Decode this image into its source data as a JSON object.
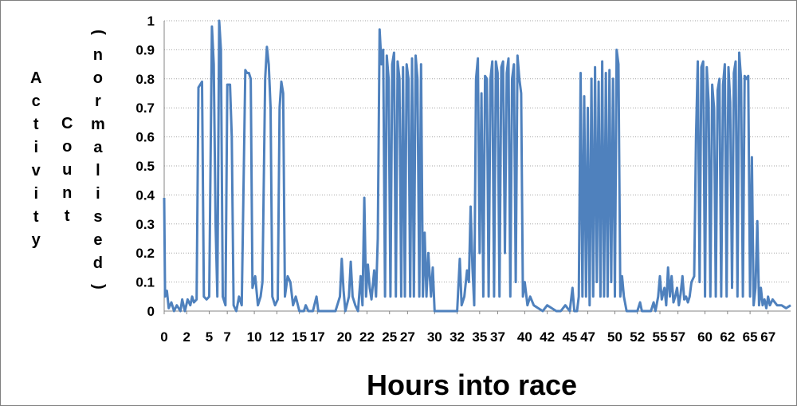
{
  "chart_data": {
    "type": "line",
    "title": "",
    "xlabel": "Hours into race",
    "ylabel_parts": [
      "Activity",
      "Count",
      "(normalised)"
    ],
    "ylim": [
      0,
      1
    ],
    "yticks": [
      "0",
      "0.1",
      "0.2",
      "0.3",
      "0.4",
      "0.5",
      "0.6",
      "0.7",
      "0.8",
      "0.9",
      "1"
    ],
    "xlim": [
      0,
      69.5
    ],
    "xticks": [
      0,
      2.5,
      5,
      7,
      10,
      12.5,
      15,
      17,
      20,
      22.5,
      25,
      27,
      30,
      32.5,
      35,
      37,
      40,
      42.5,
      45,
      47,
      50,
      52.5,
      55,
      57,
      60,
      62.5,
      65,
      67
    ],
    "xtick_labels": [
      "0",
      "2",
      "5",
      "7",
      "10",
      "12",
      "15",
      "17",
      "20",
      "22",
      "25",
      "27",
      "30",
      "32",
      "35",
      "37",
      "40",
      "42",
      "45",
      "47",
      "50",
      "52",
      "55",
      "57",
      "60",
      "62",
      "65",
      "67"
    ],
    "grid": "horizontal",
    "legend": "none",
    "series_color": "#4f81bd",
    "series": [
      {
        "values": [
          [
            0.0,
            0.39
          ],
          [
            0.1,
            0.05
          ],
          [
            0.3,
            0.07
          ],
          [
            0.5,
            0.01
          ],
          [
            0.8,
            0.03
          ],
          [
            1.1,
            0.0
          ],
          [
            1.4,
            0.02
          ],
          [
            1.8,
            0.0
          ],
          [
            2.0,
            0.04
          ],
          [
            2.3,
            0.0
          ],
          [
            2.6,
            0.04
          ],
          [
            2.9,
            0.02
          ],
          [
            3.1,
            0.05
          ],
          [
            3.3,
            0.03
          ],
          [
            3.6,
            0.04
          ],
          [
            3.8,
            0.77
          ],
          [
            4.0,
            0.78
          ],
          [
            4.2,
            0.79
          ],
          [
            4.4,
            0.05
          ],
          [
            4.7,
            0.04
          ],
          [
            5.0,
            0.05
          ],
          [
            5.3,
            0.98
          ],
          [
            5.5,
            0.85
          ],
          [
            5.7,
            0.3
          ],
          [
            5.9,
            0.05
          ],
          [
            6.1,
            1.0
          ],
          [
            6.3,
            0.9
          ],
          [
            6.5,
            0.05
          ],
          [
            6.8,
            0.02
          ],
          [
            7.0,
            0.78
          ],
          [
            7.3,
            0.78
          ],
          [
            7.5,
            0.6
          ],
          [
            7.7,
            0.02
          ],
          [
            8.0,
            0.0
          ],
          [
            8.3,
            0.05
          ],
          [
            8.6,
            0.02
          ],
          [
            9.0,
            0.83
          ],
          [
            9.2,
            0.82
          ],
          [
            9.4,
            0.82
          ],
          [
            9.6,
            0.8
          ],
          [
            9.8,
            0.08
          ],
          [
            10.1,
            0.12
          ],
          [
            10.4,
            0.02
          ],
          [
            10.7,
            0.05
          ],
          [
            10.9,
            0.1
          ],
          [
            11.2,
            0.8
          ],
          [
            11.4,
            0.91
          ],
          [
            11.6,
            0.85
          ],
          [
            11.8,
            0.7
          ],
          [
            12.0,
            0.05
          ],
          [
            12.3,
            0.02
          ],
          [
            12.6,
            0.04
          ],
          [
            12.8,
            0.7
          ],
          [
            13.0,
            0.79
          ],
          [
            13.2,
            0.75
          ],
          [
            13.4,
            0.05
          ],
          [
            13.7,
            0.12
          ],
          [
            14.0,
            0.1
          ],
          [
            14.3,
            0.02
          ],
          [
            14.6,
            0.05
          ],
          [
            15.0,
            0.0
          ],
          [
            15.5,
            0.0
          ],
          [
            15.7,
            0.02
          ],
          [
            16.0,
            0.0
          ],
          [
            16.5,
            0.0
          ],
          [
            16.9,
            0.05
          ],
          [
            17.1,
            0.0
          ],
          [
            18.0,
            0.0
          ],
          [
            19.0,
            0.0
          ],
          [
            19.5,
            0.05
          ],
          [
            19.7,
            0.18
          ],
          [
            19.9,
            0.07
          ],
          [
            20.1,
            0.0
          ],
          [
            20.5,
            0.05
          ],
          [
            20.7,
            0.17
          ],
          [
            20.9,
            0.05
          ],
          [
            21.2,
            0.02
          ],
          [
            21.5,
            0.0
          ],
          [
            21.8,
            0.12
          ],
          [
            22.0,
            0.02
          ],
          [
            22.2,
            0.39
          ],
          [
            22.4,
            0.05
          ],
          [
            22.6,
            0.16
          ],
          [
            22.8,
            0.08
          ],
          [
            23.0,
            0.04
          ],
          [
            23.3,
            0.14
          ],
          [
            23.5,
            0.05
          ],
          [
            23.7,
            0.25
          ],
          [
            23.9,
            0.97
          ],
          [
            24.1,
            0.85
          ],
          [
            24.3,
            0.9
          ],
          [
            24.5,
            0.05
          ],
          [
            24.7,
            0.88
          ],
          [
            24.9,
            0.8
          ],
          [
            25.1,
            0.05
          ],
          [
            25.3,
            0.85
          ],
          [
            25.5,
            0.89
          ],
          [
            25.7,
            0.05
          ],
          [
            25.9,
            0.86
          ],
          [
            26.1,
            0.8
          ],
          [
            26.3,
            0.05
          ],
          [
            26.5,
            0.84
          ],
          [
            26.7,
            0.05
          ],
          [
            26.9,
            0.85
          ],
          [
            27.1,
            0.8
          ],
          [
            27.3,
            0.05
          ],
          [
            27.5,
            0.87
          ],
          [
            27.7,
            0.05
          ],
          [
            27.9,
            0.88
          ],
          [
            28.1,
            0.8
          ],
          [
            28.3,
            0.05
          ],
          [
            28.5,
            0.85
          ],
          [
            28.7,
            0.05
          ],
          [
            28.9,
            0.27
          ],
          [
            29.1,
            0.05
          ],
          [
            29.3,
            0.2
          ],
          [
            29.6,
            0.05
          ],
          [
            29.8,
            0.15
          ],
          [
            30.0,
            0.0
          ],
          [
            30.5,
            0.0
          ],
          [
            31.0,
            0.0
          ],
          [
            31.5,
            0.0
          ],
          [
            32.0,
            0.0
          ],
          [
            32.5,
            0.0
          ],
          [
            32.8,
            0.18
          ],
          [
            33.0,
            0.02
          ],
          [
            33.3,
            0.05
          ],
          [
            33.6,
            0.14
          ],
          [
            33.8,
            0.1
          ],
          [
            34.0,
            0.36
          ],
          [
            34.2,
            0.15
          ],
          [
            34.4,
            0.02
          ],
          [
            34.6,
            0.8
          ],
          [
            34.8,
            0.87
          ],
          [
            35.0,
            0.2
          ],
          [
            35.2,
            0.75
          ],
          [
            35.4,
            0.05
          ],
          [
            35.6,
            0.81
          ],
          [
            35.8,
            0.8
          ],
          [
            36.0,
            0.05
          ],
          [
            36.2,
            0.8
          ],
          [
            36.4,
            0.86
          ],
          [
            36.6,
            0.05
          ],
          [
            36.8,
            0.86
          ],
          [
            37.0,
            0.82
          ],
          [
            37.2,
            0.05
          ],
          [
            37.4,
            0.84
          ],
          [
            37.6,
            0.86
          ],
          [
            37.8,
            0.2
          ],
          [
            38.0,
            0.82
          ],
          [
            38.2,
            0.87
          ],
          [
            38.4,
            0.05
          ],
          [
            38.6,
            0.8
          ],
          [
            38.8,
            0.85
          ],
          [
            39.0,
            0.1
          ],
          [
            39.2,
            0.88
          ],
          [
            39.4,
            0.8
          ],
          [
            39.6,
            0.75
          ],
          [
            39.8,
            0.05
          ],
          [
            40.0,
            0.1
          ],
          [
            40.3,
            0.02
          ],
          [
            40.6,
            0.05
          ],
          [
            41.0,
            0.02
          ],
          [
            41.5,
            0.01
          ],
          [
            42.0,
            0.0
          ],
          [
            42.5,
            0.02
          ],
          [
            43.0,
            0.01
          ],
          [
            43.5,
            0.0
          ],
          [
            44.0,
            0.0
          ],
          [
            44.5,
            0.02
          ],
          [
            45.0,
            0.0
          ],
          [
            45.3,
            0.08
          ],
          [
            45.5,
            0.0
          ],
          [
            45.8,
            0.0
          ],
          [
            46.0,
            0.05
          ],
          [
            46.2,
            0.82
          ],
          [
            46.4,
            0.05
          ],
          [
            46.6,
            0.74
          ],
          [
            46.8,
            0.05
          ],
          [
            47.0,
            0.7
          ],
          [
            47.2,
            0.02
          ],
          [
            47.4,
            0.8
          ],
          [
            47.6,
            0.05
          ],
          [
            47.8,
            0.84
          ],
          [
            48.0,
            0.1
          ],
          [
            48.2,
            0.79
          ],
          [
            48.4,
            0.05
          ],
          [
            48.6,
            0.86
          ],
          [
            48.8,
            0.05
          ],
          [
            49.0,
            0.82
          ],
          [
            49.2,
            0.05
          ],
          [
            49.4,
            0.83
          ],
          [
            49.6,
            0.1
          ],
          [
            49.8,
            0.8
          ],
          [
            50.0,
            0.05
          ],
          [
            50.2,
            0.9
          ],
          [
            50.4,
            0.85
          ],
          [
            50.6,
            0.05
          ],
          [
            50.8,
            0.12
          ],
          [
            51.0,
            0.05
          ],
          [
            51.3,
            0.0
          ],
          [
            52.0,
            0.0
          ],
          [
            52.5,
            0.0
          ],
          [
            52.8,
            0.03
          ],
          [
            53.0,
            0.0
          ],
          [
            53.5,
            0.0
          ],
          [
            54.0,
            0.0
          ],
          [
            54.3,
            0.03
          ],
          [
            54.5,
            0.0
          ],
          [
            54.8,
            0.05
          ],
          [
            55.0,
            0.12
          ],
          [
            55.2,
            0.04
          ],
          [
            55.5,
            0.08
          ],
          [
            55.7,
            0.02
          ],
          [
            55.9,
            0.15
          ],
          [
            56.1,
            0.05
          ],
          [
            56.3,
            0.12
          ],
          [
            56.5,
            0.03
          ],
          [
            56.7,
            0.05
          ],
          [
            56.9,
            0.08
          ],
          [
            57.1,
            0.02
          ],
          [
            57.3,
            0.06
          ],
          [
            57.5,
            0.12
          ],
          [
            57.7,
            0.04
          ],
          [
            57.9,
            0.05
          ],
          [
            58.1,
            0.03
          ],
          [
            58.3,
            0.05
          ],
          [
            58.5,
            0.1
          ],
          [
            58.8,
            0.12
          ],
          [
            59.0,
            0.6
          ],
          [
            59.2,
            0.86
          ],
          [
            59.4,
            0.1
          ],
          [
            59.6,
            0.84
          ],
          [
            59.8,
            0.86
          ],
          [
            60.0,
            0.05
          ],
          [
            60.2,
            0.84
          ],
          [
            60.4,
            0.72
          ],
          [
            60.6,
            0.05
          ],
          [
            60.8,
            0.78
          ],
          [
            61.0,
            0.7
          ],
          [
            61.2,
            0.05
          ],
          [
            61.4,
            0.76
          ],
          [
            61.6,
            0.8
          ],
          [
            61.8,
            0.05
          ],
          [
            62.0,
            0.78
          ],
          [
            62.2,
            0.85
          ],
          [
            62.4,
            0.05
          ],
          [
            62.6,
            0.84
          ],
          [
            62.8,
            0.72
          ],
          [
            63.0,
            0.08
          ],
          [
            63.2,
            0.82
          ],
          [
            63.4,
            0.86
          ],
          [
            63.6,
            0.05
          ],
          [
            63.8,
            0.89
          ],
          [
            64.0,
            0.8
          ],
          [
            64.2,
            0.05
          ],
          [
            64.4,
            0.81
          ],
          [
            64.6,
            0.8
          ],
          [
            64.8,
            0.81
          ],
          [
            65.0,
            0.05
          ],
          [
            65.2,
            0.53
          ],
          [
            65.4,
            0.02
          ],
          [
            65.6,
            0.08
          ],
          [
            65.8,
            0.31
          ],
          [
            66.0,
            0.02
          ],
          [
            66.2,
            0.08
          ],
          [
            66.4,
            0.02
          ],
          [
            66.6,
            0.04
          ],
          [
            66.8,
            0.01
          ],
          [
            67.0,
            0.05
          ],
          [
            67.2,
            0.02
          ],
          [
            67.5,
            0.04
          ],
          [
            68.0,
            0.02
          ],
          [
            68.5,
            0.02
          ],
          [
            69.0,
            0.01
          ],
          [
            69.5,
            0.02
          ]
        ]
      }
    ]
  }
}
